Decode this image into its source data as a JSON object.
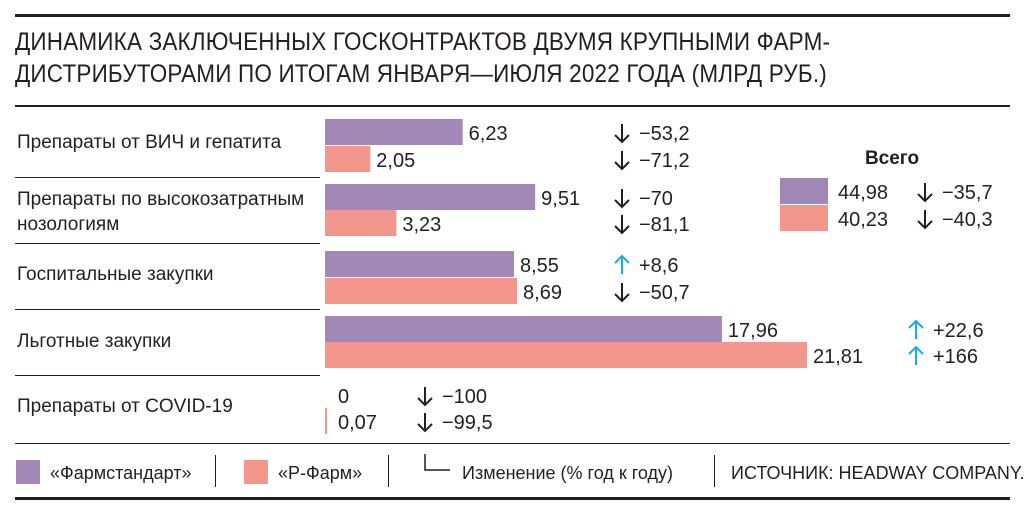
{
  "title": "Динамика заключенных госконтрактов двумя крупными фарм-дистрибуторами по итогам января—июля 2022 года (млрд руб.)",
  "colors": {
    "pharmstandard": "#a288b6",
    "rpharm": "#f3978d",
    "up_arrow": "#1fa9e1",
    "text": "#231f20"
  },
  "chart_data": {
    "type": "bar",
    "orientation": "horizontal",
    "title": "Динамика заключенных госконтрактов двумя крупными фарм-дистрибуторами по итогам января—июля 2022 года (млрд руб.)",
    "unit": "млрд руб.",
    "categories": [
      "Препараты от ВИЧ и гепатита",
      "Препараты по высокозатратным нозологиям",
      "Госпитальные закупки",
      "Льготные закупки",
      "Препараты от COVID-19"
    ],
    "series": [
      {
        "name": "«Фармстандарт»",
        "color": "#a288b6",
        "values": [
          6.23,
          9.51,
          8.55,
          17.96,
          0
        ],
        "labels": [
          "6,23",
          "9,51",
          "8,55",
          "17,96",
          "0"
        ],
        "changes": [
          "−53,2",
          "−70",
          "+8,6",
          "+22,6",
          "−100"
        ],
        "change_dir": [
          "down",
          "down",
          "up",
          "up",
          "down"
        ]
      },
      {
        "name": "«Р-Фарм»",
        "color": "#f3978d",
        "values": [
          2.05,
          3.23,
          8.69,
          21.81,
          0.07
        ],
        "labels": [
          "2,05",
          "3,23",
          "8,69",
          "21,81",
          "0,07"
        ],
        "changes": [
          "−71,2",
          "−81,1",
          "−50,7",
          "+166",
          "−99,5"
        ],
        "change_dir": [
          "down",
          "down",
          "down",
          "up",
          "down"
        ]
      }
    ],
    "total": {
      "label": "Всего",
      "values": [
        44.98,
        40.23
      ],
      "labels": [
        "44,98",
        "40,23"
      ],
      "changes": [
        "−35,7",
        "−40,3"
      ],
      "change_dir": [
        "down",
        "down"
      ]
    }
  },
  "legend": {
    "pharmstandard": "«Фармстандарт»",
    "rpharm": "«Р-Фарм»",
    "change": "Изменение (% год к году)",
    "source": "ИСТОЧНИК: HEADWAY COMPANY."
  }
}
